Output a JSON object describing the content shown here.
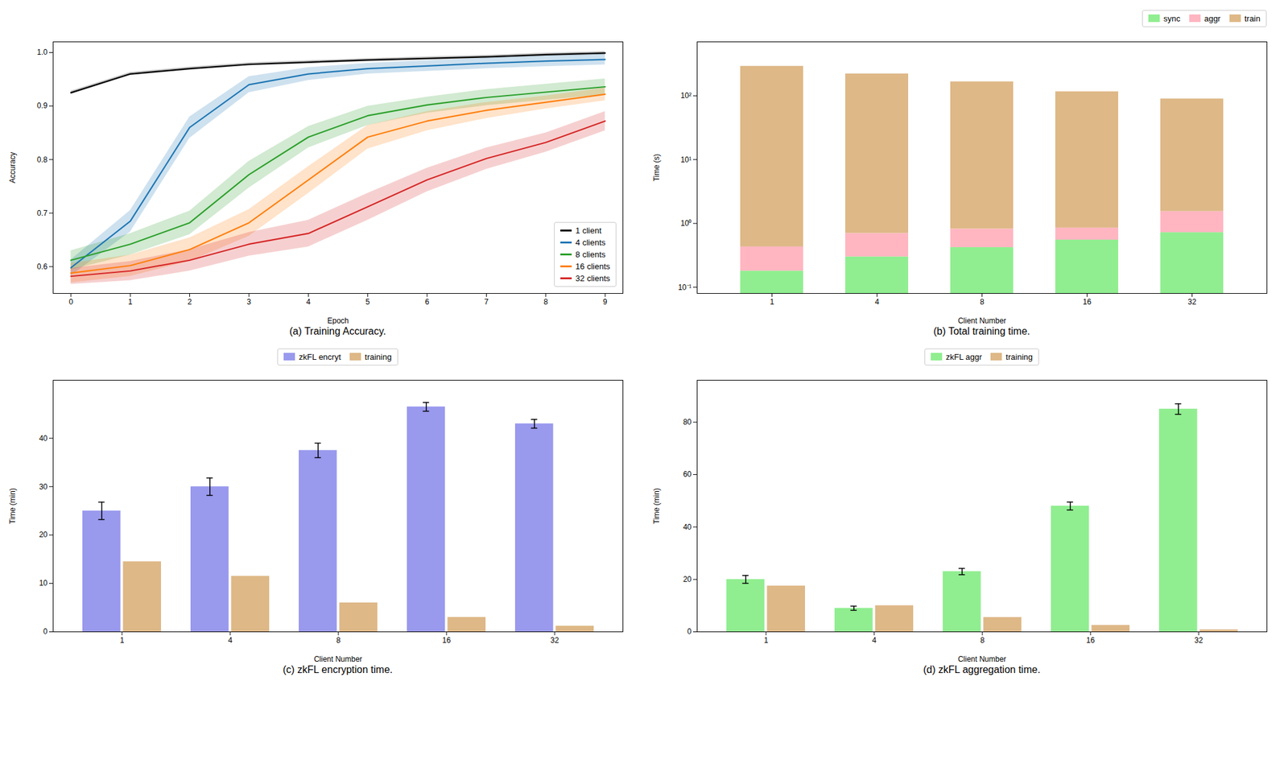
{
  "chart_data": [
    {
      "type": "line",
      "title": "(a) Training Accuracy.",
      "xlabel": "Epoch",
      "ylabel": "Accuracy",
      "x": [
        0,
        1,
        2,
        3,
        4,
        5,
        6,
        7,
        8,
        9
      ],
      "series": [
        {
          "name": "1 client",
          "color": "#000000",
          "values": [
            0.925,
            0.96,
            0.97,
            0.978,
            0.982,
            0.986,
            0.989,
            0.992,
            0.996,
            0.999
          ],
          "std": [
            0.003,
            0.003,
            0.003,
            0.003,
            0.003,
            0.003,
            0.003,
            0.003,
            0.003,
            0.003
          ]
        },
        {
          "name": "4 clients",
          "color": "#1f77b4",
          "values": [
            0.598,
            0.685,
            0.86,
            0.94,
            0.96,
            0.97,
            0.975,
            0.98,
            0.984,
            0.987
          ],
          "std": [
            0.015,
            0.02,
            0.02,
            0.015,
            0.012,
            0.01,
            0.01,
            0.01,
            0.01,
            0.01
          ]
        },
        {
          "name": "8 clients",
          "color": "#2ca02c",
          "values": [
            0.612,
            0.642,
            0.682,
            0.772,
            0.842,
            0.882,
            0.902,
            0.916,
            0.926,
            0.936
          ],
          "std": [
            0.018,
            0.02,
            0.022,
            0.025,
            0.02,
            0.018,
            0.015,
            0.015,
            0.015,
            0.015
          ]
        },
        {
          "name": "16 clients",
          "color": "#ff7f0e",
          "values": [
            0.588,
            0.602,
            0.632,
            0.682,
            0.762,
            0.842,
            0.872,
            0.892,
            0.907,
            0.922
          ],
          "std": [
            0.018,
            0.02,
            0.022,
            0.025,
            0.025,
            0.022,
            0.018,
            0.015,
            0.012,
            0.012
          ]
        },
        {
          "name": "32 clients",
          "color": "#d62728",
          "values": [
            0.582,
            0.592,
            0.612,
            0.642,
            0.662,
            0.712,
            0.762,
            0.802,
            0.832,
            0.872
          ],
          "std": [
            0.015,
            0.018,
            0.02,
            0.022,
            0.025,
            0.025,
            0.022,
            0.02,
            0.018,
            0.018
          ]
        }
      ],
      "xlim": [
        -0.3,
        9.3
      ],
      "ylim": [
        0.55,
        1.02
      ],
      "xticks": [
        0,
        1,
        2,
        3,
        4,
        5,
        6,
        7,
        8,
        9
      ],
      "yticks": [
        0.6,
        0.7,
        0.8,
        0.9,
        {
          "value": 1.0,
          "label": "1.0"
        }
      ],
      "legend": "lower right",
      "grid": false
    },
    {
      "type": "bar",
      "stacked": true,
      "log": "y",
      "title": "(b) Total training time.",
      "xlabel": "Client Number",
      "ylabel": "Time (s)",
      "categories": [
        "1",
        "4",
        "8",
        "16",
        "32"
      ],
      "series": [
        {
          "name": "sync",
          "color": "#90EE90",
          "values": [
            0.18,
            0.3,
            0.42,
            0.55,
            0.72
          ]
        },
        {
          "name": "aggr",
          "color": "#FFB6C1",
          "values": [
            0.25,
            0.4,
            0.4,
            0.3,
            0.82
          ]
        },
        {
          "name": "train",
          "color": "#DEB887",
          "values": [
            290,
            220,
            165,
            115,
            88
          ]
        }
      ],
      "ylim": [
        0.08,
        700
      ],
      "yticks": [
        {
          "value": 0.1,
          "label": "10⁻¹"
        },
        {
          "value": 1,
          "label": "10⁰"
        },
        {
          "value": 10,
          "label": "10¹"
        },
        {
          "value": 100,
          "label": "10²"
        }
      ],
      "legend": "upper right",
      "grid": false
    },
    {
      "type": "bar",
      "title": "(c) zkFL encryption time.",
      "xlabel": "Client Number",
      "ylabel": "Time (min)",
      "categories": [
        "1",
        "4",
        "8",
        "16",
        "32"
      ],
      "series": [
        {
          "name": "zkFL encryt",
          "color": "#9999ee",
          "values": [
            25.0,
            30.0,
            37.5,
            46.5,
            43.0
          ],
          "err": [
            1.8,
            1.8,
            1.5,
            0.9,
            0.9
          ]
        },
        {
          "name": "training",
          "color": "#DEB887",
          "values": [
            14.5,
            11.5,
            6.0,
            3.0,
            1.2
          ]
        }
      ],
      "ylim": [
        0,
        52
      ],
      "yticks": [
        0,
        10,
        20,
        30,
        40
      ],
      "legend": "upper center",
      "grid": false
    },
    {
      "type": "bar",
      "title": "(d) zkFL aggregation time.",
      "xlabel": "Client Number",
      "ylabel": "Time (min)",
      "categories": [
        "1",
        "4",
        "8",
        "16",
        "32"
      ],
      "series": [
        {
          "name": "zkFL aggr",
          "color": "#90EE90",
          "values": [
            20.0,
            9.0,
            23.0,
            48.0,
            85.0
          ],
          "err": [
            1.5,
            0.8,
            1.2,
            1.5,
            2.0
          ]
        },
        {
          "name": "training",
          "color": "#DEB887",
          "values": [
            17.5,
            10.0,
            5.5,
            2.5,
            0.8
          ]
        }
      ],
      "ylim": [
        0,
        96
      ],
      "yticks": [
        0,
        20,
        40,
        60,
        80
      ],
      "legend": "upper center",
      "grid": false
    }
  ]
}
